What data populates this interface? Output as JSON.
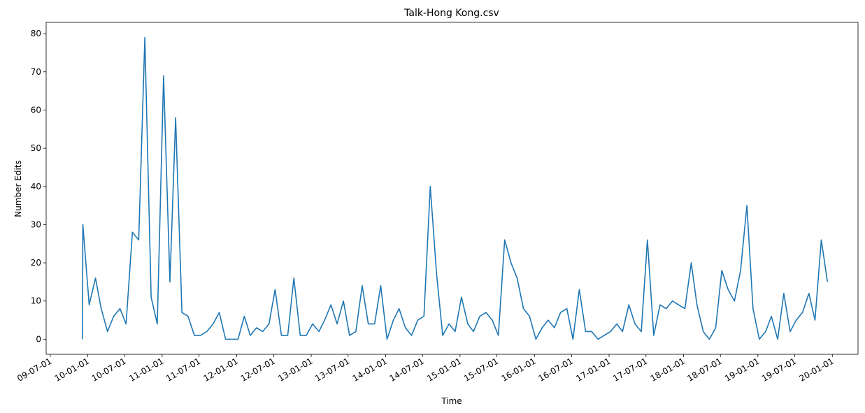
{
  "chart_data": {
    "type": "line",
    "title": "Talk-Hong Kong.csv",
    "xlabel": "Time",
    "ylabel": "Number Edits",
    "color": "#1f77b4",
    "x": [
      "09-12-06",
      "09-12-08",
      "10-01-08",
      "10-02-08",
      "10-03-08",
      "10-04-08",
      "10-05-08",
      "10-06-08",
      "10-07-08",
      "10-08-08",
      "10-09-08",
      "10-10-08",
      "10-11-08",
      "10-12-08",
      "11-01-08",
      "11-02-08",
      "11-03-08",
      "11-04-08",
      "11-05-08",
      "11-06-08",
      "11-07-08",
      "11-08-08",
      "11-09-08",
      "11-10-08",
      "11-11-08",
      "11-12-08",
      "12-01-08",
      "12-02-08",
      "12-03-08",
      "12-04-08",
      "12-05-08",
      "12-06-08",
      "12-07-08",
      "12-08-08",
      "12-09-08",
      "12-10-08",
      "12-11-08",
      "12-12-08",
      "13-01-08",
      "13-02-08",
      "13-03-08",
      "13-04-08",
      "13-05-08",
      "13-06-08",
      "13-07-08",
      "13-08-08",
      "13-09-08",
      "13-10-08",
      "13-11-08",
      "13-12-08",
      "14-01-08",
      "14-02-08",
      "14-03-08",
      "14-04-08",
      "14-05-08",
      "14-06-08",
      "14-07-08",
      "14-08-08",
      "14-09-08",
      "14-10-08",
      "14-11-08",
      "14-12-08",
      "15-01-08",
      "15-02-08",
      "15-03-08",
      "15-04-08",
      "15-05-08",
      "15-06-08",
      "15-07-08",
      "15-08-08",
      "15-09-08",
      "15-10-08",
      "15-11-08",
      "15-12-08",
      "16-01-08",
      "16-02-08",
      "16-03-08",
      "16-04-08",
      "16-05-08",
      "16-06-08",
      "16-07-08",
      "16-08-08",
      "16-09-08",
      "16-10-08",
      "16-11-08",
      "16-12-08",
      "17-01-08",
      "17-02-08",
      "17-03-08",
      "17-04-08",
      "17-05-08",
      "17-06-08",
      "17-07-08",
      "17-08-08",
      "17-09-08",
      "17-10-08",
      "17-11-08",
      "17-12-08",
      "18-01-08",
      "18-02-08",
      "18-03-08",
      "18-04-08",
      "18-05-08",
      "18-06-08",
      "18-07-08",
      "18-08-08",
      "18-09-08",
      "18-10-08",
      "18-11-08",
      "18-12-08",
      "19-01-08",
      "19-02-08",
      "19-03-08",
      "19-04-08",
      "19-05-08",
      "19-06-08",
      "19-07-08",
      "19-08-08",
      "19-09-08",
      "19-10-08",
      "19-11-08",
      "19-12-08"
    ],
    "values": [
      0,
      30,
      9,
      16,
      8,
      2,
      6,
      8,
      4,
      28,
      26,
      79,
      11,
      4,
      69,
      15,
      58,
      7,
      6,
      1,
      1,
      2,
      4,
      7,
      0,
      0,
      0,
      6,
      1,
      3,
      2,
      4,
      13,
      1,
      1,
      16,
      1,
      1,
      4,
      2,
      5,
      9,
      4,
      10,
      1,
      2,
      14,
      4,
      4,
      14,
      0,
      5,
      8,
      3,
      1,
      5,
      6,
      40,
      17,
      1,
      4,
      2,
      11,
      4,
      2,
      6,
      7,
      5,
      1,
      26,
      20,
      16,
      8,
      6,
      0,
      3,
      5,
      3,
      7,
      8,
      0,
      13,
      2,
      2,
      0,
      1,
      2,
      4,
      2,
      9,
      4,
      2,
      26,
      1,
      9,
      8,
      10,
      9,
      8,
      20,
      9,
      2,
      0,
      3,
      18,
      13,
      10,
      18,
      35,
      8,
      0,
      2,
      6,
      0,
      12,
      2,
      5,
      7,
      12,
      5,
      26,
      15
    ],
    "xlim": [
      "09-06-11",
      "20-05-06"
    ],
    "xticks": [
      "09-07-01",
      "10-01-01",
      "10-07-01",
      "11-01-01",
      "11-07-01",
      "12-01-01",
      "12-07-01",
      "13-01-01",
      "13-07-01",
      "14-01-01",
      "14-07-01",
      "15-01-01",
      "15-07-01",
      "16-01-01",
      "16-07-01",
      "17-01-01",
      "17-07-01",
      "18-01-01",
      "18-07-01",
      "19-01-01",
      "19-07-01",
      "20-01-01"
    ],
    "ylim": [
      -3.95,
      82.95
    ],
    "yticks": [
      0,
      10,
      20,
      30,
      40,
      50,
      60,
      70,
      80
    ]
  }
}
